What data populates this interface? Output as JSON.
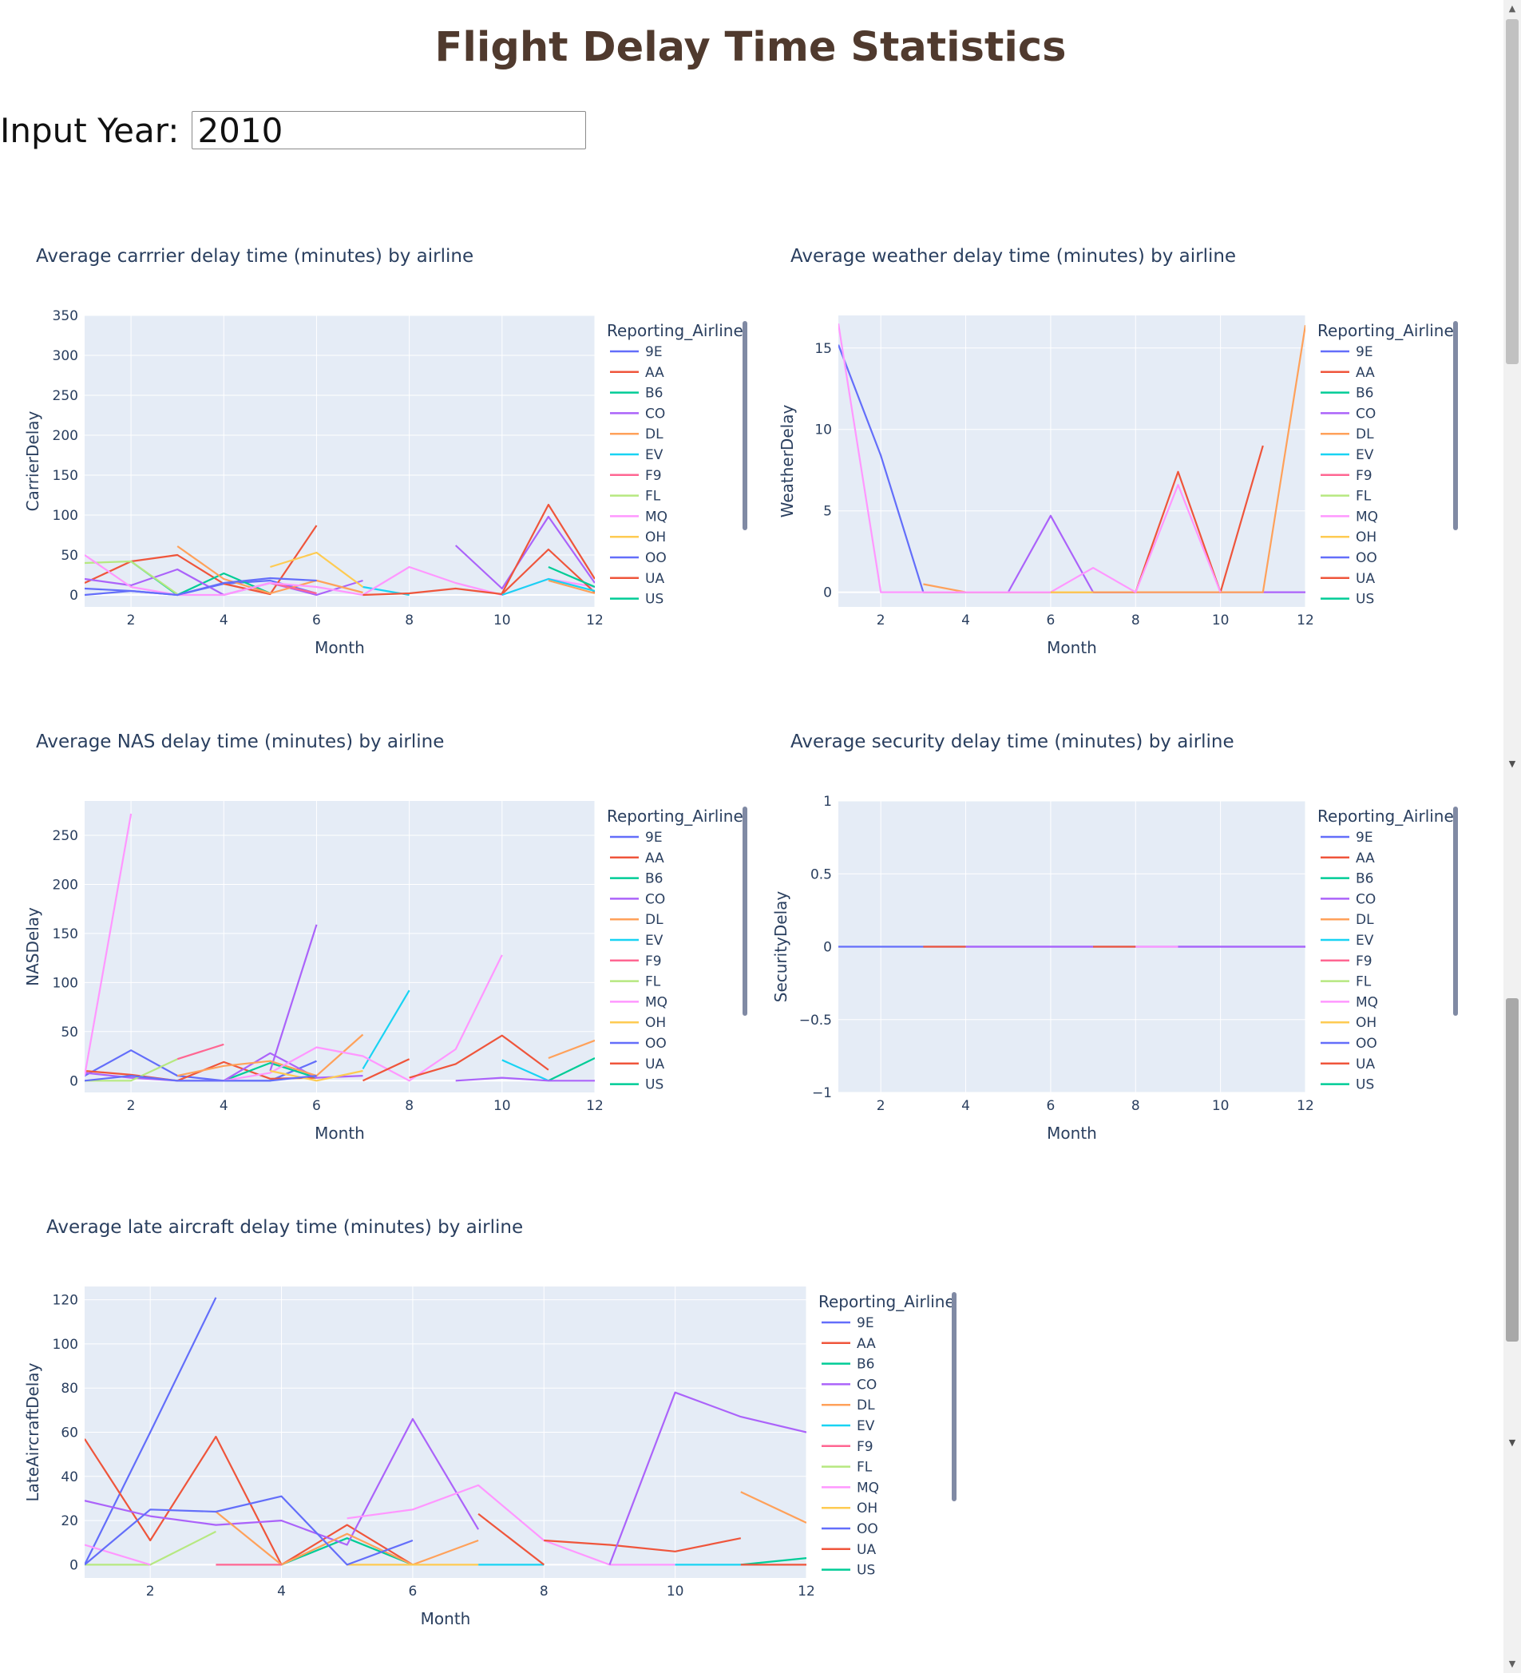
{
  "page": {
    "title": "Flight Delay Time Statistics",
    "input_label": "Input Year:",
    "input_value": "2010"
  },
  "airlines": [
    "9E",
    "AA",
    "B6",
    "CO",
    "DL",
    "EV",
    "F9",
    "FL",
    "MQ",
    "OH",
    "OO",
    "UA",
    "US"
  ],
  "colors": {
    "9E": "#636efa",
    "AA": "#EF553B",
    "B6": "#00cc96",
    "CO": "#ab63fa",
    "DL": "#FFA15A",
    "EV": "#19d3f3",
    "F9": "#FF6692",
    "FL": "#B6E880",
    "MQ": "#FF97FF",
    "OH": "#FECB52",
    "OO": "#636efa",
    "UA": "#EF553B",
    "US": "#00cc96",
    "plot_bg": "#E5ECF6",
    "grid": "#ffffff",
    "legend_scroll": "#808AA4",
    "title_color": "#503A2E"
  },
  "chart_data": [
    {
      "type": "line",
      "title": "Average carrrier delay time (minutes) by airline",
      "xlabel": "Month",
      "ylabel": "CarrierDelay",
      "legend_title": "Reporting_Airline",
      "xlim": [
        1,
        12
      ],
      "ylim": [
        -15,
        350
      ],
      "xticks": [
        2,
        4,
        6,
        8,
        10,
        12
      ],
      "yticks": [
        0,
        50,
        100,
        150,
        200,
        250,
        300,
        350
      ],
      "series": [
        {
          "name": "9E",
          "x": [
            1,
            2,
            3,
            4,
            5,
            6
          ],
          "y": [
            8,
            5,
            0,
            14,
            18,
            2
          ]
        },
        {
          "name": "AA",
          "x": [
            1,
            2,
            3,
            4,
            5,
            6
          ],
          "y": [
            15,
            42,
            50,
            14,
            1,
            87
          ]
        },
        {
          "name": "B6",
          "x": [
            2,
            3,
            4,
            5
          ],
          "y": [
            42,
            0,
            27,
            2
          ]
        },
        {
          "name": "CO",
          "x": [
            1,
            2,
            3,
            4,
            5,
            6,
            7
          ],
          "y": [
            20,
            12,
            32,
            0,
            15,
            0,
            18
          ]
        },
        {
          "name": "DL",
          "x": [
            3,
            4,
            5,
            6,
            7
          ],
          "y": [
            61,
            20,
            2,
            18,
            3
          ]
        },
        {
          "name": "EV",
          "x": [
            7,
            8
          ],
          "y": [
            10,
            0
          ]
        },
        {
          "name": "F9",
          "x": [
            5,
            6
          ],
          "y": [
            15,
            2
          ]
        },
        {
          "name": "FL",
          "x": [
            1,
            2,
            3
          ],
          "y": [
            40,
            42,
            1
          ]
        },
        {
          "name": "MQ",
          "x": [
            1,
            2,
            3,
            4,
            5,
            6,
            7,
            8,
            9,
            10,
            11,
            12
          ],
          "y": [
            50,
            10,
            0,
            0,
            15,
            10,
            0,
            35,
            15,
            0,
            20,
            10
          ]
        },
        {
          "name": "OH",
          "x": [
            5,
            6,
            7
          ],
          "y": [
            35,
            53,
            10
          ]
        },
        {
          "name": "OO",
          "x": [
            1,
            2,
            3,
            4,
            5,
            6
          ],
          "y": [
            0,
            5,
            0,
            15,
            21,
            18
          ]
        },
        {
          "name": "UA",
          "x": [
            7,
            8,
            9,
            10,
            11,
            12
          ],
          "y": [
            0,
            2,
            8,
            1,
            57,
            3
          ]
        },
        {
          "name": "US",
          "x": [
            11,
            12
          ],
          "y": [
            35,
            10
          ]
        },
        {
          "name": "CO",
          "x": [
            9,
            10,
            11,
            12
          ],
          "y": [
            62,
            8,
            98,
            15
          ]
        },
        {
          "name": "AA",
          "x": [
            10,
            11,
            12
          ],
          "y": [
            2,
            113,
            20
          ]
        },
        {
          "name": "EV",
          "x": [
            10,
            11,
            12
          ],
          "y": [
            0,
            20,
            5
          ]
        },
        {
          "name": "DL",
          "x": [
            11,
            12
          ],
          "y": [
            18,
            2
          ]
        }
      ]
    },
    {
      "type": "line",
      "title": "Average weather delay time (minutes) by airline",
      "xlabel": "Month",
      "ylabel": "WeatherDelay",
      "legend_title": "Reporting_Airline",
      "xlim": [
        1,
        12
      ],
      "ylim": [
        -0.9,
        17
      ],
      "xticks": [
        2,
        4,
        6,
        8,
        10,
        12
      ],
      "yticks": [
        0,
        5,
        10,
        15
      ],
      "series": [
        {
          "name": "9E",
          "x": [
            1,
            2,
            3,
            4,
            5,
            6,
            7,
            8
          ],
          "y": [
            15.2,
            8.4,
            0,
            0,
            0,
            0,
            0,
            0
          ]
        },
        {
          "name": "AA",
          "x": [
            3,
            4,
            5,
            6,
            7,
            8,
            9,
            10,
            11
          ],
          "y": [
            0,
            0,
            0,
            0,
            0,
            0,
            7.4,
            0,
            9
          ]
        },
        {
          "name": "CO",
          "x": [
            4,
            5,
            6,
            7,
            8,
            9,
            10,
            11,
            12
          ],
          "y": [
            0,
            0,
            4.7,
            0,
            0,
            0,
            0,
            0,
            0
          ]
        },
        {
          "name": "DL",
          "x": [
            3,
            4,
            11,
            12
          ],
          "y": [
            0.5,
            0,
            0,
            16.4
          ]
        },
        {
          "name": "MQ",
          "x": [
            1,
            2,
            3,
            6,
            7,
            8,
            9,
            10
          ],
          "y": [
            16.5,
            0,
            0,
            0,
            1.5,
            0,
            6.6,
            0
          ]
        },
        {
          "name": "OH",
          "x": [
            6,
            7
          ],
          "y": [
            0,
            0
          ]
        }
      ]
    },
    {
      "type": "line",
      "title": "Average NAS delay time (minutes) by airline",
      "xlabel": "Month",
      "ylabel": "NASDelay",
      "legend_title": "Reporting_Airline",
      "xlim": [
        1,
        12
      ],
      "ylim": [
        -12,
        285
      ],
      "xticks": [
        2,
        4,
        6,
        8,
        10,
        12
      ],
      "yticks": [
        0,
        50,
        100,
        150,
        200,
        250
      ],
      "series": [
        {
          "name": "9E",
          "x": [
            1,
            2,
            3,
            4,
            5,
            6
          ],
          "y": [
            5,
            31,
            5,
            0,
            0,
            20
          ]
        },
        {
          "name": "AA",
          "x": [
            1,
            2,
            3,
            4,
            5,
            6
          ],
          "y": [
            10,
            6,
            0,
            19,
            2,
            3
          ]
        },
        {
          "name": "B6",
          "x": [
            4,
            5,
            6
          ],
          "y": [
            0,
            18,
            3
          ]
        },
        {
          "name": "CO",
          "x": [
            1,
            2,
            3,
            4,
            5,
            6,
            7
          ],
          "y": [
            8,
            3,
            0,
            0,
            28,
            3,
            5
          ]
        },
        {
          "name": "CO",
          "x": [
            5,
            6
          ],
          "y": [
            10,
            159
          ]
        },
        {
          "name": "DL",
          "x": [
            3,
            4,
            5,
            6,
            7
          ],
          "y": [
            5,
            15,
            20,
            5,
            47
          ]
        },
        {
          "name": "EV",
          "x": [
            7,
            8
          ],
          "y": [
            12,
            92
          ]
        },
        {
          "name": "F9",
          "x": [
            3,
            4
          ],
          "y": [
            22,
            37
          ]
        },
        {
          "name": "FL",
          "x": [
            1,
            2,
            3
          ],
          "y": [
            0,
            0,
            22
          ]
        },
        {
          "name": "MQ",
          "x": [
            1,
            2
          ],
          "y": [
            5,
            272
          ]
        },
        {
          "name": "MQ",
          "x": [
            4,
            5,
            6,
            7,
            8,
            9,
            10
          ],
          "y": [
            0,
            8,
            34,
            25,
            0,
            32,
            128
          ]
        },
        {
          "name": "OH",
          "x": [
            5,
            6,
            7
          ],
          "y": [
            10,
            0,
            10
          ]
        },
        {
          "name": "OO",
          "x": [
            1,
            2,
            3,
            4,
            5,
            6
          ],
          "y": [
            0,
            5,
            0,
            0,
            0,
            5
          ]
        },
        {
          "name": "UA",
          "x": [
            7,
            8
          ],
          "y": [
            0,
            22
          ]
        },
        {
          "name": "UA",
          "x": [
            8,
            9,
            10,
            11
          ],
          "y": [
            3,
            17,
            46,
            11
          ]
        },
        {
          "name": "EV",
          "x": [
            10,
            11
          ],
          "y": [
            21,
            0
          ]
        },
        {
          "name": "US",
          "x": [
            11,
            12
          ],
          "y": [
            0,
            23
          ]
        },
        {
          "name": "DL",
          "x": [
            11,
            12
          ],
          "y": [
            23,
            41
          ]
        },
        {
          "name": "CO",
          "x": [
            9,
            10,
            11,
            12
          ],
          "y": [
            0,
            3,
            0,
            0
          ]
        }
      ]
    },
    {
      "type": "line",
      "title": "Average security delay time (minutes) by airline",
      "xlabel": "Month",
      "ylabel": "SecurityDelay",
      "legend_title": "Reporting_Airline",
      "xlim": [
        1,
        12
      ],
      "ylim": [
        -1,
        1
      ],
      "xticks": [
        2,
        4,
        6,
        8,
        10,
        12
      ],
      "yticks": [
        -1,
        -0.5,
        0,
        0.5,
        1
      ],
      "ytick_labels": [
        "−1",
        "−0.5",
        "0",
        "0.5",
        "1"
      ],
      "series": [
        {
          "name": "9E",
          "x": [
            1,
            2,
            3,
            4,
            5,
            6,
            7,
            8,
            9,
            10,
            11,
            12
          ],
          "y": [
            0,
            0,
            0,
            0,
            0,
            0,
            0,
            0,
            0,
            0,
            0,
            0
          ]
        },
        {
          "name": "AA",
          "x": [
            3,
            4
          ],
          "y": [
            0,
            0
          ]
        },
        {
          "name": "CO",
          "x": [
            4,
            5,
            6,
            7
          ],
          "y": [
            0,
            0,
            0,
            0
          ]
        },
        {
          "name": "AA",
          "x": [
            7,
            8
          ],
          "y": [
            0,
            0
          ]
        },
        {
          "name": "MQ",
          "x": [
            8,
            9
          ],
          "y": [
            0,
            0
          ]
        },
        {
          "name": "CO",
          "x": [
            9,
            10,
            11,
            12
          ],
          "y": [
            0,
            0,
            0,
            0
          ]
        }
      ]
    },
    {
      "type": "line",
      "title": "Average late aircraft delay time (minutes) by airline",
      "xlabel": "Month",
      "ylabel": "LateAircraftDelay",
      "legend_title": "Reporting_Airline",
      "xlim": [
        1,
        12
      ],
      "ylim": [
        -6,
        126
      ],
      "xticks": [
        2,
        4,
        6,
        8,
        10,
        12
      ],
      "yticks": [
        0,
        20,
        40,
        60,
        80,
        100,
        120
      ],
      "series": [
        {
          "name": "9E",
          "x": [
            1,
            2,
            3
          ],
          "y": [
            0,
            60,
            121
          ]
        },
        {
          "name": "AA",
          "x": [
            1,
            2,
            3,
            4,
            5,
            6
          ],
          "y": [
            57,
            11,
            58,
            0,
            18,
            0
          ]
        },
        {
          "name": "B6",
          "x": [
            4,
            5,
            6
          ],
          "y": [
            0,
            12,
            0
          ]
        },
        {
          "name": "CO",
          "x": [
            1,
            2,
            3,
            4,
            5,
            6,
            7
          ],
          "y": [
            29,
            22,
            18,
            20,
            9,
            66,
            16
          ]
        },
        {
          "name": "DL",
          "x": [
            3,
            4,
            5,
            6,
            7
          ],
          "y": [
            24,
            0,
            14,
            0,
            11
          ]
        },
        {
          "name": "EV",
          "x": [
            7,
            8
          ],
          "y": [
            0,
            0
          ]
        },
        {
          "name": "F9",
          "x": [
            3,
            4
          ],
          "y": [
            0,
            0
          ]
        },
        {
          "name": "FL",
          "x": [
            1,
            2,
            3
          ],
          "y": [
            0,
            0,
            15
          ]
        },
        {
          "name": "MQ",
          "x": [
            1,
            2
          ],
          "y": [
            9,
            0
          ]
        },
        {
          "name": "MQ",
          "x": [
            5,
            6,
            7,
            8,
            9,
            10
          ],
          "y": [
            21,
            25,
            36,
            11,
            0,
            0
          ]
        },
        {
          "name": "OH",
          "x": [
            5,
            6,
            7
          ],
          "y": [
            0,
            0,
            0
          ]
        },
        {
          "name": "OO",
          "x": [
            1,
            2,
            3,
            4,
            5,
            6
          ],
          "y": [
            0,
            25,
            24,
            31,
            0,
            11
          ]
        },
        {
          "name": "UA",
          "x": [
            7,
            8
          ],
          "y": [
            23,
            0
          ]
        },
        {
          "name": "UA",
          "x": [
            8,
            9,
            10,
            11
          ],
          "y": [
            11,
            9,
            6,
            12
          ]
        },
        {
          "name": "CO",
          "x": [
            9,
            10,
            11,
            12
          ],
          "y": [
            0,
            78,
            67,
            60
          ]
        },
        {
          "name": "EV",
          "x": [
            10,
            11
          ],
          "y": [
            0,
            0
          ]
        },
        {
          "name": "US",
          "x": [
            11,
            12
          ],
          "y": [
            0,
            3
          ]
        },
        {
          "name": "DL",
          "x": [
            11,
            12
          ],
          "y": [
            33,
            19
          ]
        },
        {
          "name": "AA",
          "x": [
            11,
            12
          ],
          "y": [
            0,
            0
          ]
        }
      ]
    }
  ]
}
